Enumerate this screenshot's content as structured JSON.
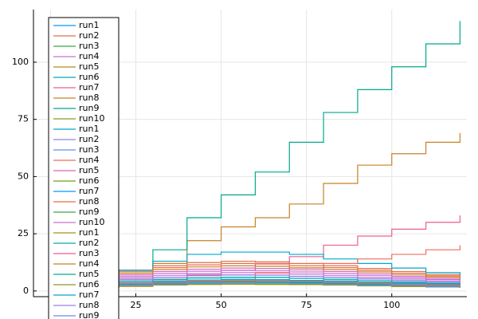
{
  "chart_data": {
    "type": "line",
    "linestyle": "steppost",
    "grid": true,
    "legend": "top-left",
    "x": [
      0,
      10,
      20,
      30,
      40,
      50,
      60,
      70,
      80,
      90,
      100,
      110,
      120
    ],
    "xlim": [
      -5,
      122
    ],
    "ylim": [
      -2.5,
      123
    ],
    "xticks": [
      0,
      25,
      50,
      75,
      100
    ],
    "yticks": [
      0,
      25,
      50,
      75,
      100
    ],
    "series": [
      {
        "name": "run1",
        "color": "#009afa",
        "values": [
          1.5,
          2.5,
          3.5,
          4.3,
          4.8,
          5,
          4.9,
          4.6,
          4.3,
          3.8,
          3.3,
          2.8,
          2.3
        ]
      },
      {
        "name": "run2",
        "color": "#e36f47",
        "values": [
          3.9,
          6.5,
          9.1,
          11,
          12.4,
          13,
          12.7,
          12,
          11,
          9.8,
          8.5,
          7.2,
          5.9
        ]
      },
      {
        "name": "run3",
        "color": "#3ea44e",
        "values": [
          1.2,
          2,
          2.8,
          3.4,
          3.8,
          4,
          3.9,
          3.7,
          3.4,
          3,
          2.6,
          2.2,
          1.8
        ]
      },
      {
        "name": "run4",
        "color": "#c371d2",
        "values": [
          2.4,
          4,
          5.6,
          6.8,
          7.6,
          8,
          7.8,
          7.4,
          6.8,
          6,
          5.2,
          4.4,
          3.6
        ]
      },
      {
        "name": "run5",
        "color": "#ac8e18",
        "values": [
          0.9,
          1.5,
          2.1,
          2.6,
          2.9,
          3,
          2.9,
          2.8,
          2.6,
          2.3,
          2,
          1.7,
          1.4
        ]
      },
      {
        "name": "run6",
        "color": "#00aaae",
        "values": [
          1.8,
          3,
          4.2,
          5.1,
          5.7,
          6,
          5.9,
          5.5,
          5.1,
          4.5,
          3.9,
          3.3,
          2.7
        ]
      },
      {
        "name": "run7",
        "color": "#ed5e93",
        "values": [
          1,
          2,
          3,
          5,
          7,
          9,
          12,
          15,
          20,
          24,
          27,
          30,
          33
        ]
      },
      {
        "name": "run8",
        "color": "#c68225",
        "values": [
          2,
          3,
          5,
          12,
          22,
          28,
          32,
          38,
          47,
          55,
          60,
          65,
          69
        ]
      },
      {
        "name": "run9",
        "color": "#00a98d",
        "values": [
          2,
          5,
          9,
          18,
          32,
          42,
          52,
          65,
          78,
          88,
          98,
          108,
          118
        ]
      },
      {
        "name": "run10",
        "color": "#8e971e",
        "values": [
          1.1,
          1.8,
          2.5,
          3,
          3.3,
          3.5,
          3.4,
          3.2,
          3,
          2.6,
          2.3,
          1.9,
          1.6
        ]
      },
      {
        "name": "run1",
        "color": "#00a9cd",
        "values": [
          2,
          5,
          9,
          13,
          16,
          17,
          17,
          16,
          14,
          12,
          10,
          8,
          7
        ]
      },
      {
        "name": "run2",
        "color": "#9b7fe8",
        "values": [
          2.1,
          3.5,
          4.9,
          6,
          6.7,
          7,
          6.9,
          6.4,
          6,
          5.3,
          4.6,
          3.9,
          3.2
        ]
      },
      {
        "name": "run3",
        "color": "#618df6",
        "values": [
          1.4,
          2.3,
          3.2,
          3.8,
          4.3,
          4.5,
          4.4,
          4.1,
          3.8,
          3.4,
          2.9,
          2.5,
          2
        ]
      },
      {
        "name": "run4",
        "color": "#f16c5e",
        "values": [
          1,
          2,
          2,
          3,
          4,
          5,
          8,
          10,
          12,
          14,
          16,
          18,
          20
        ]
      },
      {
        "name": "run5",
        "color": "#dc63bb",
        "values": [
          3,
          5,
          7,
          8.5,
          9.5,
          10,
          9.8,
          9.2,
          8.5,
          7.5,
          6.5,
          5.5,
          4.5
        ]
      },
      {
        "name": "run6",
        "color": "#6d9f11",
        "values": [
          0.9,
          1.5,
          2.1,
          2.6,
          2.9,
          3,
          2.9,
          2.8,
          2.6,
          2.3,
          2,
          1.7,
          1.4
        ]
      },
      {
        "name": "run7",
        "color": "#009afa",
        "values": [
          1.5,
          2.5,
          3.5,
          4.3,
          4.8,
          5,
          4.9,
          4.6,
          4.3,
          3.8,
          3.3,
          2.8,
          2.3
        ]
      },
      {
        "name": "run8",
        "color": "#e36f47",
        "values": [
          3.6,
          6,
          8.4,
          10.2,
          11.4,
          12,
          11.8,
          11,
          10.2,
          9,
          7.8,
          6.6,
          5.4
        ]
      },
      {
        "name": "run9",
        "color": "#3ea44e",
        "values": [
          1.2,
          2,
          2.8,
          3.4,
          3.8,
          4,
          3.9,
          3.7,
          3.4,
          3,
          2.6,
          2.2,
          1.8
        ]
      },
      {
        "name": "run10",
        "color": "#c371d2",
        "values": [
          2.7,
          4.5,
          6.3,
          7.7,
          8.6,
          9,
          8.8,
          8.3,
          7.7,
          6.8,
          5.9,
          5,
          4.1
        ]
      },
      {
        "name": "run1",
        "color": "#ac8e18",
        "values": [
          0.9,
          1.5,
          2.1,
          2.6,
          2.9,
          3,
          2.9,
          2.8,
          2.6,
          2.3,
          2,
          1.7,
          1.4
        ]
      },
      {
        "name": "run2",
        "color": "#00aaae",
        "values": [
          1.8,
          3,
          4.2,
          5.1,
          5.7,
          6,
          5.9,
          5.5,
          5.1,
          4.5,
          3.9,
          3.3,
          2.7
        ]
      },
      {
        "name": "run3",
        "color": "#ed5e93",
        "values": [
          1.5,
          2.5,
          3.5,
          4.3,
          4.8,
          5,
          4.9,
          4.6,
          4.3,
          3.8,
          3.3,
          2.8,
          2.3
        ]
      },
      {
        "name": "run4",
        "color": "#c68225",
        "values": [
          3.3,
          5.5,
          7.7,
          9.4,
          10.5,
          11,
          10.8,
          10.1,
          9.4,
          8.3,
          7.2,
          6.1,
          5
        ]
      },
      {
        "name": "run5",
        "color": "#00a98d",
        "values": [
          1.2,
          2,
          2.8,
          3.4,
          3.8,
          4,
          3.9,
          3.7,
          3.4,
          3,
          2.6,
          2.2,
          1.8
        ]
      },
      {
        "name": "run6",
        "color": "#8e971e",
        "values": [
          0.9,
          1.5,
          2.1,
          2.6,
          2.9,
          3,
          2.9,
          2.8,
          2.6,
          2.3,
          2,
          1.7,
          1.4
        ]
      },
      {
        "name": "run7",
        "color": "#00a9cd",
        "values": [
          1.5,
          2.5,
          3.5,
          4.3,
          4.8,
          5,
          4.9,
          4.6,
          4.3,
          3.8,
          3.3,
          2.8,
          2.3
        ]
      },
      {
        "name": "run8",
        "color": "#9b7fe8",
        "values": [
          2.1,
          3.5,
          4.9,
          6,
          6.7,
          7,
          6.9,
          6.4,
          6,
          5.3,
          4.6,
          3.9,
          3.2
        ]
      },
      {
        "name": "run9",
        "color": "#618df6",
        "values": [
          1.1,
          1.8,
          2.5,
          3,
          3.3,
          3.5,
          3.4,
          3.2,
          3,
          2.6,
          2.3,
          1.9,
          1.6
        ]
      },
      {
        "name": "run10",
        "color": "#f16c5e",
        "values": [
          1.4,
          2.3,
          3.2,
          3.8,
          4.3,
          4.5,
          4.4,
          4.1,
          3.8,
          3.4,
          2.9,
          2.5,
          2
        ]
      }
    ]
  }
}
